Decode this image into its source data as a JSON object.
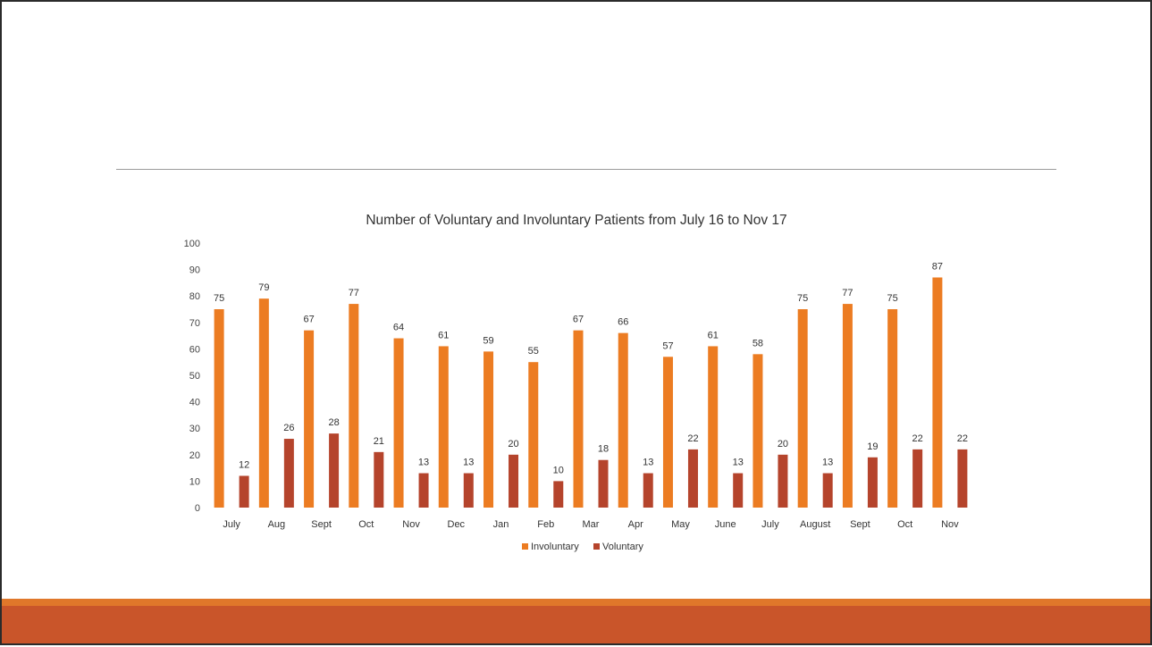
{
  "chart_data": {
    "type": "bar",
    "title": "Number of Voluntary and Involuntary Patients from July 16 to Nov 17",
    "categories": [
      "July",
      "Aug",
      "Sept",
      "Oct",
      "Nov",
      "Dec",
      "Jan",
      "Feb",
      "Mar",
      "Apr",
      "May",
      "June",
      "July",
      "August",
      "Sept",
      "Oct",
      "Nov"
    ],
    "series": [
      {
        "name": "Involuntary",
        "color": "#ec7c22",
        "values": [
          75,
          79,
          67,
          77,
          64,
          61,
          59,
          55,
          67,
          66,
          57,
          61,
          58,
          75,
          77,
          75,
          87
        ]
      },
      {
        "name": "Voluntary",
        "color": "#b5442c",
        "values": [
          12,
          26,
          28,
          21,
          13,
          13,
          20,
          10,
          18,
          13,
          22,
          13,
          20,
          13,
          19,
          22,
          22
        ]
      }
    ],
    "yticks": [
      0,
      10,
      20,
      30,
      40,
      50,
      60,
      70,
      80,
      90,
      100
    ],
    "ylim": [
      0,
      100
    ],
    "grid": false,
    "legend": "bottom-center",
    "xlabel": "",
    "ylabel": ""
  },
  "colors": {
    "footer": "#c9552a",
    "footer_accent": "#e0772a",
    "rule": "#9a9a9a"
  }
}
